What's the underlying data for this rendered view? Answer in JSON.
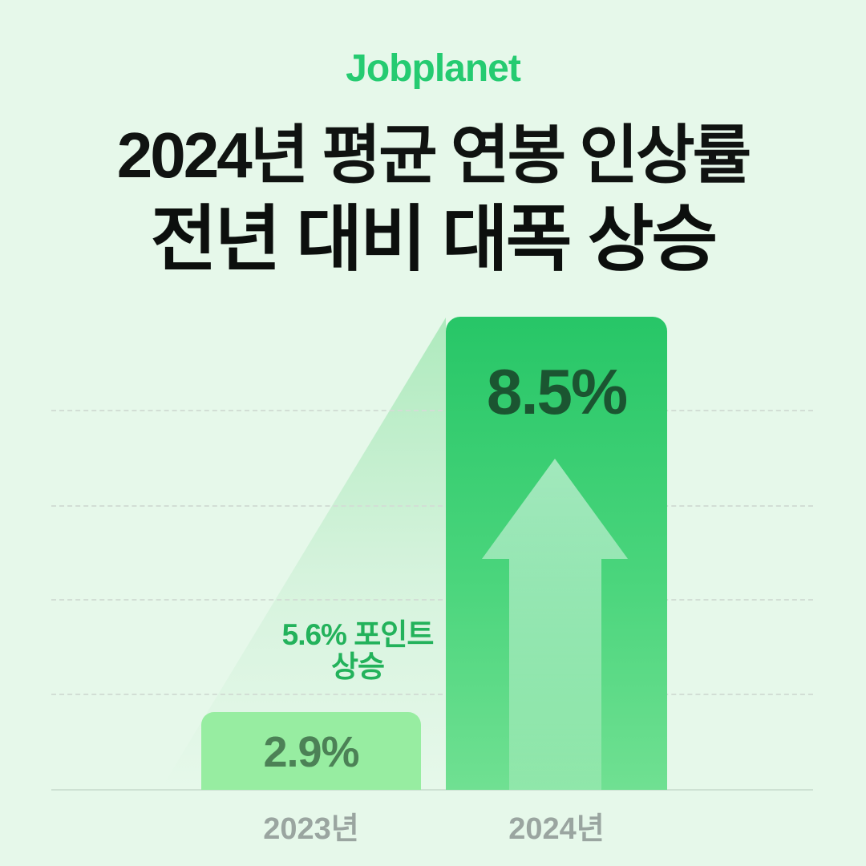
{
  "brand": {
    "logo_text": "Jobplanet",
    "logo_color": "#25cb71"
  },
  "title": {
    "line1": "2024년 평균 연봉 인상률",
    "line2": "전년 대비 대폭 상승",
    "color": "#101311"
  },
  "chart_data": {
    "type": "bar",
    "title": "2024년 평균 연봉 인상률 전년 대비 대폭 상승",
    "categories": [
      "2023년",
      "2024년"
    ],
    "values": [
      2.9,
      8.5
    ],
    "unit": "%",
    "value_labels": [
      "2.9%",
      "8.5%"
    ],
    "annotation_lines": [
      "5.6% 포인트",
      "상승"
    ],
    "annotation_full": "5.6% 포인트 상승",
    "grid": "horizontal dashed lines, no axis tick values shown",
    "legend": "none",
    "ylim": [
      0,
      8.5
    ],
    "bar_colors": {
      "2023": "#97eda1",
      "2024_gradient_top": "#27c667",
      "2024_gradient_bottom": "#70e092"
    },
    "value_label_colors": {
      "2023": "#4c8156",
      "2024": "#1b5531"
    },
    "annotation_color": "#23b25b",
    "axis_label_color": "#9aa5a0",
    "background_color": "#e6f8ea",
    "decorations": [
      "light green wedge connecting 2023 bar to 2024 bar top",
      "white up-arrow inside 2024 bar"
    ]
  }
}
